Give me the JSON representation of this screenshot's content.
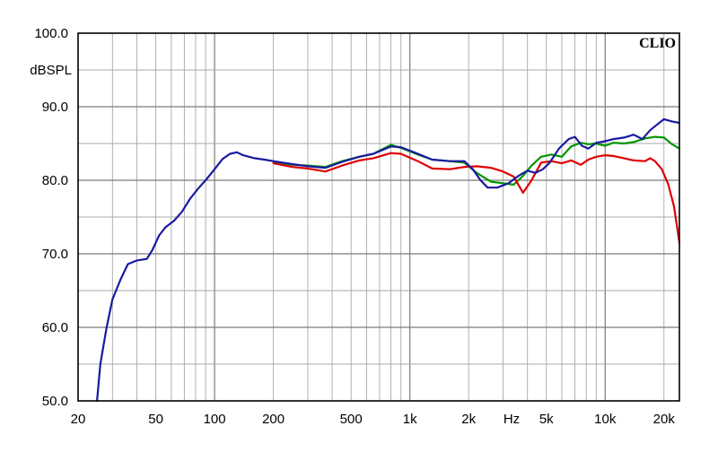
{
  "chart_data": {
    "type": "line",
    "brand_label": "CLIO",
    "ylabel": "dBSPL",
    "xlabel": "Hz",
    "x_scale": "log",
    "xlim": [
      20,
      24000
    ],
    "ylim": [
      50,
      100
    ],
    "grid": true,
    "x_ticks": [
      {
        "value": 20,
        "label": "20"
      },
      {
        "value": 50,
        "label": "50"
      },
      {
        "value": 100,
        "label": "100"
      },
      {
        "value": 200,
        "label": "200"
      },
      {
        "value": 500,
        "label": "500"
      },
      {
        "value": 1000,
        "label": "1k"
      },
      {
        "value": 2000,
        "label": "2k"
      },
      {
        "value": 5000,
        "label": "5k"
      },
      {
        "value": 10000,
        "label": "10k"
      },
      {
        "value": 20000,
        "label": "20k"
      }
    ],
    "y_ticks": [
      {
        "value": 50,
        "label": "50.0"
      },
      {
        "value": 60,
        "label": "60.0"
      },
      {
        "value": 70,
        "label": "70.0"
      },
      {
        "value": 80,
        "label": "80.0"
      },
      {
        "value": 90,
        "label": "90.0"
      },
      {
        "value": 100,
        "label": "100.0"
      }
    ],
    "series": [
      {
        "color": "#009600",
        "points": [
          [
            200,
            82.5
          ],
          [
            250,
            82.1
          ],
          [
            300,
            82.0
          ],
          [
            370,
            81.8
          ],
          [
            450,
            82.6
          ],
          [
            550,
            83.2
          ],
          [
            650,
            83.6
          ],
          [
            800,
            84.8
          ],
          [
            900,
            84.4
          ],
          [
            1100,
            83.5
          ],
          [
            1300,
            82.8
          ],
          [
            1600,
            82.6
          ],
          [
            1900,
            82.4
          ],
          [
            2200,
            81.0
          ],
          [
            2600,
            79.8
          ],
          [
            3000,
            79.6
          ],
          [
            3400,
            79.4
          ],
          [
            3800,
            80.6
          ],
          [
            4200,
            82.0
          ],
          [
            4700,
            83.2
          ],
          [
            5300,
            83.5
          ],
          [
            6000,
            83.2
          ],
          [
            6700,
            84.6
          ],
          [
            7500,
            85.1
          ],
          [
            8200,
            84.9
          ],
          [
            9000,
            85.0
          ],
          [
            10000,
            84.7
          ],
          [
            11000,
            85.1
          ],
          [
            12500,
            85.0
          ],
          [
            14000,
            85.2
          ],
          [
            16000,
            85.7
          ],
          [
            18000,
            85.9
          ],
          [
            20000,
            85.8
          ],
          [
            22000,
            84.9
          ],
          [
            24000,
            84.3
          ]
        ]
      },
      {
        "color": "#e00000",
        "points": [
          [
            200,
            82.3
          ],
          [
            250,
            81.8
          ],
          [
            300,
            81.6
          ],
          [
            370,
            81.2
          ],
          [
            450,
            82.0
          ],
          [
            550,
            82.7
          ],
          [
            650,
            83.0
          ],
          [
            800,
            83.7
          ],
          [
            900,
            83.6
          ],
          [
            1100,
            82.6
          ],
          [
            1300,
            81.6
          ],
          [
            1600,
            81.5
          ],
          [
            1900,
            81.8
          ],
          [
            2200,
            81.9
          ],
          [
            2600,
            81.7
          ],
          [
            3000,
            81.2
          ],
          [
            3400,
            80.5
          ],
          [
            3800,
            78.3
          ],
          [
            4200,
            80.0
          ],
          [
            4700,
            82.4
          ],
          [
            5300,
            82.6
          ],
          [
            6000,
            82.3
          ],
          [
            6700,
            82.7
          ],
          [
            7500,
            82.1
          ],
          [
            8200,
            82.8
          ],
          [
            9000,
            83.2
          ],
          [
            10000,
            83.4
          ],
          [
            11000,
            83.3
          ],
          [
            12500,
            83.0
          ],
          [
            14000,
            82.7
          ],
          [
            16000,
            82.6
          ],
          [
            17000,
            83.0
          ],
          [
            18000,
            82.6
          ],
          [
            19500,
            81.5
          ],
          [
            21000,
            79.5
          ],
          [
            22500,
            76.5
          ],
          [
            24000,
            71.5
          ]
        ]
      },
      {
        "color": "#1a1aa0",
        "points": [
          [
            25,
            50.0
          ],
          [
            26,
            55.0
          ],
          [
            28,
            60.0
          ],
          [
            30,
            63.8
          ],
          [
            33,
            66.5
          ],
          [
            36,
            68.6
          ],
          [
            40,
            69.1
          ],
          [
            45,
            69.3
          ],
          [
            48,
            70.5
          ],
          [
            52,
            72.5
          ],
          [
            56,
            73.6
          ],
          [
            62,
            74.5
          ],
          [
            68,
            75.7
          ],
          [
            75,
            77.5
          ],
          [
            82,
            78.8
          ],
          [
            90,
            80.0
          ],
          [
            100,
            81.5
          ],
          [
            110,
            82.9
          ],
          [
            120,
            83.6
          ],
          [
            130,
            83.8
          ],
          [
            140,
            83.4
          ],
          [
            160,
            83.0
          ],
          [
            180,
            82.8
          ],
          [
            200,
            82.6
          ],
          [
            250,
            82.2
          ],
          [
            300,
            81.9
          ],
          [
            370,
            81.7
          ],
          [
            450,
            82.5
          ],
          [
            550,
            83.2
          ],
          [
            650,
            83.6
          ],
          [
            800,
            84.6
          ],
          [
            900,
            84.5
          ],
          [
            1100,
            83.6
          ],
          [
            1300,
            82.8
          ],
          [
            1600,
            82.6
          ],
          [
            1900,
            82.6
          ],
          [
            2100,
            81.5
          ],
          [
            2300,
            80.0
          ],
          [
            2500,
            79.0
          ],
          [
            2800,
            79.0
          ],
          [
            3200,
            79.6
          ],
          [
            3600,
            80.6
          ],
          [
            4000,
            81.3
          ],
          [
            4400,
            81.0
          ],
          [
            4800,
            81.5
          ],
          [
            5200,
            82.4
          ],
          [
            5800,
            84.3
          ],
          [
            6500,
            85.6
          ],
          [
            7000,
            85.9
          ],
          [
            7600,
            84.7
          ],
          [
            8200,
            84.3
          ],
          [
            9000,
            85.1
          ],
          [
            10000,
            85.3
          ],
          [
            11000,
            85.6
          ],
          [
            12500,
            85.8
          ],
          [
            14000,
            86.2
          ],
          [
            15500,
            85.6
          ],
          [
            17000,
            86.8
          ],
          [
            18500,
            87.6
          ],
          [
            20000,
            88.3
          ],
          [
            22000,
            88.0
          ],
          [
            24000,
            87.8
          ]
        ]
      }
    ]
  }
}
